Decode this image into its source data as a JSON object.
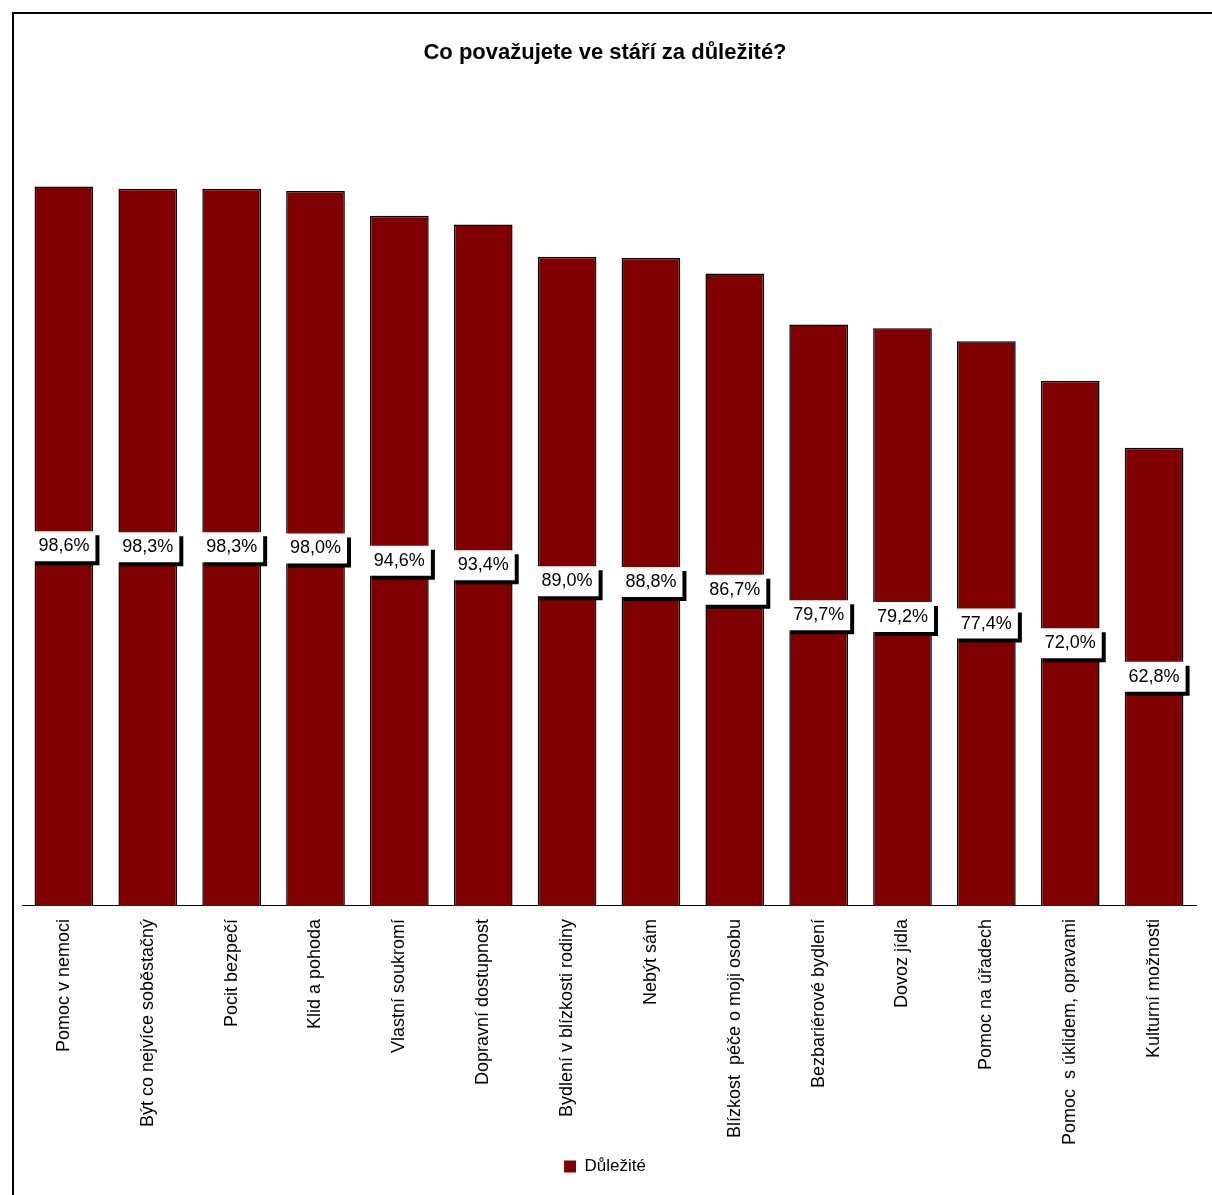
{
  "chart_data": {
    "type": "bar",
    "title": "Co považujete ve stáří za důležité?",
    "categories": [
      "Pomoc v nemoci",
      "Být co nejvíce soběstačný",
      "Pocit bezpečí",
      "Klid a pohoda",
      "Vlastní soukromí",
      "Dopravní dostupnost",
      "Bydlení v blízkosti rodiny",
      "Nebýt sám",
      "Blízkost  péče o moji osobu",
      "Bezbariérové bydlení",
      "Dovoz jídla",
      "Pomoc na úřadech",
      "Pomoc  s úklidem, opravami",
      "Kulturní možnosti"
    ],
    "series": [
      {
        "name": "Důležité",
        "color": "#800000",
        "values": [
          98.6,
          98.3,
          98.3,
          98.0,
          94.6,
          93.4,
          89.0,
          88.8,
          86.7,
          79.7,
          79.2,
          77.4,
          72.0,
          62.8
        ],
        "value_labels": [
          "98,6%",
          "98,3%",
          "98,3%",
          "98,0%",
          "94,6%",
          "93,4%",
          "89,0%",
          "88,8%",
          "86,7%",
          "79,7%",
          "79,2%",
          "77,4%",
          "72,0%",
          "62,8%"
        ]
      }
    ],
    "legend": "bottom",
    "grid": false
  }
}
